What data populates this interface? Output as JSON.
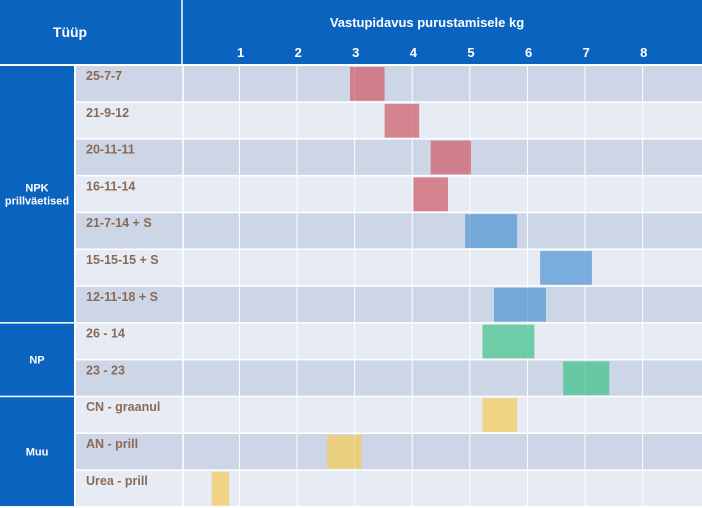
{
  "header": {
    "type_label": "Tüüp",
    "axis_title": "Vastupidavus purustamisele kg"
  },
  "groups": [
    {
      "label_lines": [
        "NPK",
        "prillväetised"
      ],
      "rows": 7
    },
    {
      "label_lines": [
        "NP"
      ],
      "rows": 2
    },
    {
      "label_lines": [
        "Muu"
      ],
      "rows": 3
    }
  ],
  "colors": {
    "header_blue": "#0a64bf",
    "row_dark": "#cdd6e7",
    "row_light": "#e7ebf4",
    "grid_line": "#ffffff",
    "label_text": "#8a6a55",
    "red": "#cf6772",
    "blue": "#5b9bd5",
    "green": "#4cc48f",
    "yellow": "#f2cd63"
  },
  "chart_data": {
    "type": "bar",
    "orientation": "horizontal-range",
    "title": "",
    "xlabel": "Vastupidavus purustamisele kg",
    "ylabel": "Tüüp",
    "xlim": [
      0,
      8.5
    ],
    "xticks": [
      1,
      2,
      3,
      4,
      5,
      6,
      7,
      8
    ],
    "grid": true,
    "categories": [
      "25-7-7",
      "21-9-12",
      "20-11-11",
      "16-11-14",
      "21-7-14 + S",
      "15-15-15 + S",
      "12-11-18 + S",
      "26 - 14",
      "23 - 23",
      "CN - graanul",
      "AN - prill",
      "Urea - prill"
    ],
    "ranges": [
      {
        "label": "25-7-7",
        "group": "NPK prillväetised",
        "min": 2.9,
        "max": 3.5,
        "color": "red"
      },
      {
        "label": "21-9-12",
        "group": "NPK prillväetised",
        "min": 3.5,
        "max": 4.1,
        "color": "red"
      },
      {
        "label": "20-11-11",
        "group": "NPK prillväetised",
        "min": 4.3,
        "max": 5.0,
        "color": "red"
      },
      {
        "label": "16-11-14",
        "group": "NPK prillväetised",
        "min": 4.0,
        "max": 4.6,
        "color": "red"
      },
      {
        "label": "21-7-14 + S",
        "group": "NPK prillväetised",
        "min": 4.9,
        "max": 5.8,
        "color": "blue"
      },
      {
        "label": "15-15-15 + S",
        "group": "NPK prillväetised",
        "min": 6.2,
        "max": 7.1,
        "color": "blue"
      },
      {
        "label": "12-11-18 + S",
        "group": "NPK prillväetised",
        "min": 5.4,
        "max": 6.3,
        "color": "blue"
      },
      {
        "label": "26 - 14",
        "group": "NP",
        "min": 5.2,
        "max": 6.1,
        "color": "green"
      },
      {
        "label": "23 - 23",
        "group": "NP",
        "min": 6.6,
        "max": 7.4,
        "color": "green"
      },
      {
        "label": "CN - graanul",
        "group": "Muu",
        "min": 5.2,
        "max": 5.8,
        "color": "yellow"
      },
      {
        "label": "AN - prill",
        "group": "Muu",
        "min": 2.5,
        "max": 3.1,
        "color": "yellow"
      },
      {
        "label": "Urea - prill",
        "group": "Muu",
        "min": 0.5,
        "max": 0.8,
        "color": "yellow"
      }
    ]
  }
}
